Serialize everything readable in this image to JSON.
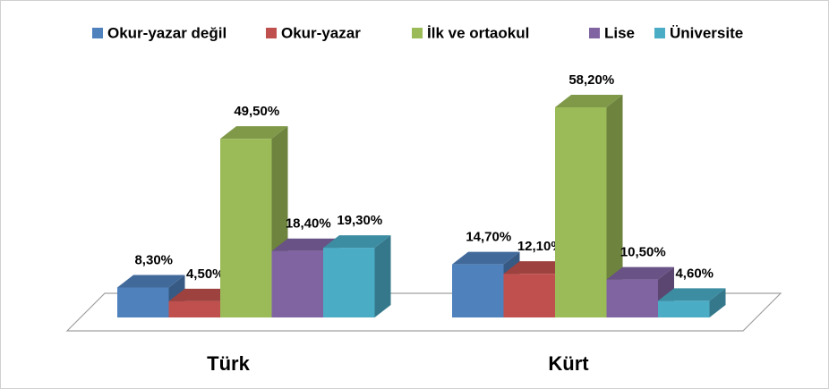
{
  "chart_data": {
    "type": "bar",
    "categories": [
      "Türk",
      "Kürt"
    ],
    "series": [
      {
        "name": "Okur-yazar değil",
        "color": "#4f81bd",
        "values": [
          8.3,
          14.7
        ],
        "value_labels": [
          "8,30%",
          "14,70%"
        ]
      },
      {
        "name": "Okur-yazar",
        "color": "#c0504d",
        "values": [
          4.5,
          12.1
        ],
        "value_labels": [
          "4,50%",
          "12,10%"
        ]
      },
      {
        "name": "İlk ve ortaokul",
        "color": "#9bbb59",
        "values": [
          49.5,
          58.2
        ],
        "value_labels": [
          "49,50%",
          "58,20%"
        ]
      },
      {
        "name": "Lise",
        "color": "#8064a2",
        "values": [
          18.4,
          10.5
        ],
        "value_labels": [
          "18,40%",
          "10,50%"
        ]
      },
      {
        "name": "Üniversite",
        "color": "#4bacc6",
        "values": [
          19.3,
          4.6
        ],
        "value_labels": [
          "19,30%",
          "4,60%"
        ]
      }
    ],
    "legend": "top"
  }
}
